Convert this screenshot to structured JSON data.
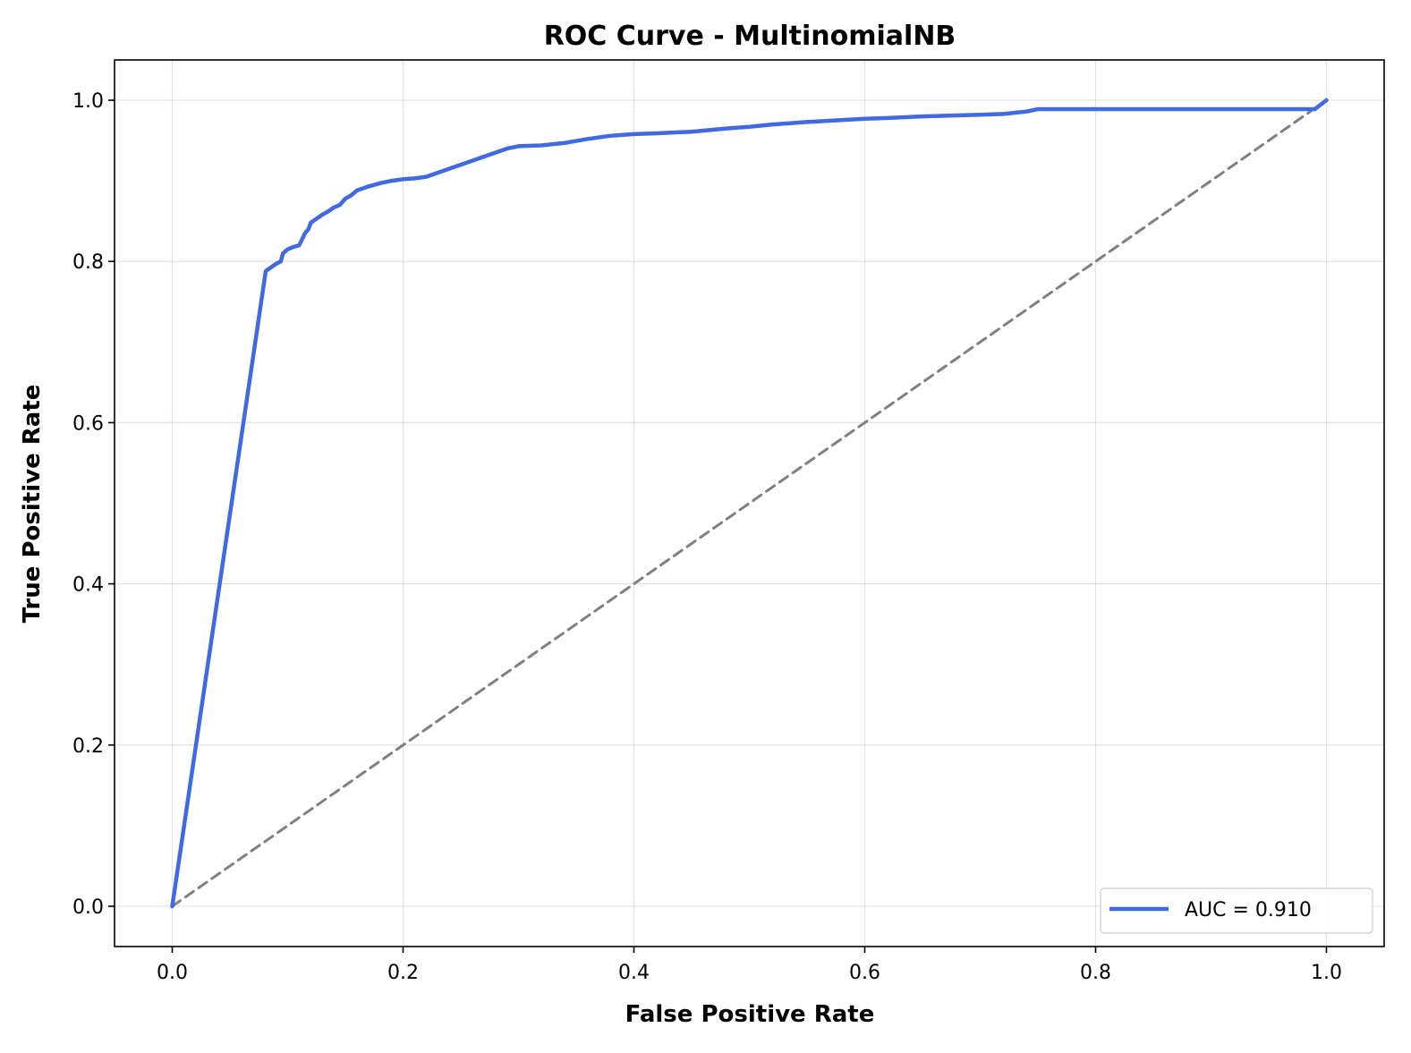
{
  "chart_data": {
    "type": "line",
    "title": "ROC Curve - MultinomialNB",
    "xlabel": "False Positive Rate",
    "ylabel": "True Positive Rate",
    "xlim": [
      -0.05,
      1.05
    ],
    "ylim": [
      -0.05,
      1.05
    ],
    "xticks": [
      "0.0",
      "0.2",
      "0.4",
      "0.6",
      "0.8",
      "1.0"
    ],
    "yticks": [
      "0.0",
      "0.2",
      "0.4",
      "0.6",
      "0.8",
      "1.0"
    ],
    "grid": true,
    "legend_position": "lower right",
    "series": [
      {
        "name": "AUC = 0.910",
        "color": "#4169e1",
        "style": "solid",
        "x": [
          0.0,
          0.081,
          0.085,
          0.09,
          0.094,
          0.096,
          0.1,
          0.105,
          0.11,
          0.115,
          0.118,
          0.12,
          0.125,
          0.13,
          0.135,
          0.14,
          0.145,
          0.15,
          0.155,
          0.16,
          0.17,
          0.18,
          0.19,
          0.2,
          0.21,
          0.22,
          0.23,
          0.24,
          0.25,
          0.26,
          0.27,
          0.28,
          0.29,
          0.3,
          0.32,
          0.34,
          0.36,
          0.38,
          0.4,
          0.42,
          0.45,
          0.48,
          0.5,
          0.52,
          0.55,
          0.6,
          0.62,
          0.65,
          0.7,
          0.72,
          0.74,
          0.75,
          0.8,
          0.85,
          0.9,
          0.95,
          0.99,
          1.0
        ],
        "y": [
          0.0,
          0.788,
          0.792,
          0.797,
          0.8,
          0.81,
          0.815,
          0.818,
          0.82,
          0.835,
          0.84,
          0.848,
          0.853,
          0.858,
          0.862,
          0.867,
          0.87,
          0.878,
          0.882,
          0.888,
          0.893,
          0.897,
          0.9,
          0.902,
          0.903,
          0.905,
          0.91,
          0.915,
          0.92,
          0.925,
          0.93,
          0.935,
          0.94,
          0.943,
          0.944,
          0.947,
          0.952,
          0.956,
          0.958,
          0.959,
          0.961,
          0.965,
          0.967,
          0.97,
          0.973,
          0.977,
          0.978,
          0.98,
          0.982,
          0.983,
          0.986,
          0.989,
          0.989,
          0.989,
          0.989,
          0.989,
          0.989,
          1.0
        ]
      },
      {
        "name": "",
        "color": "#808080",
        "style": "dashed",
        "x": [
          0.0,
          1.0
        ],
        "y": [
          0.0,
          1.0
        ]
      }
    ]
  }
}
